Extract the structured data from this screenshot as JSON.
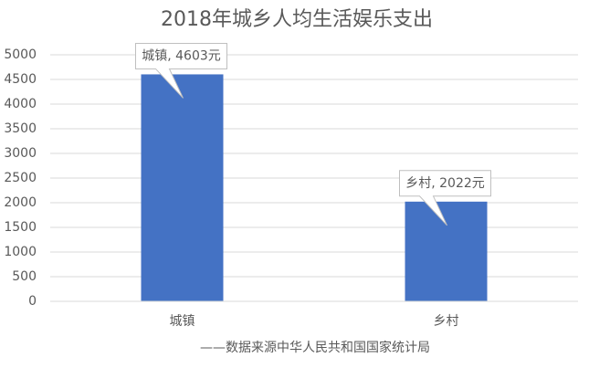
{
  "chart_data": {
    "type": "bar",
    "title": "2018年城乡人均生活娱乐支出",
    "categories": [
      "城镇",
      "乡村"
    ],
    "values": [
      4603,
      2022
    ],
    "value_labels": [
      "城镇, 4603元",
      "乡村, 2022元"
    ],
    "color": "#4472c4",
    "x_label": "——数据来源中华人民共和国国家统计局",
    "ylim": [
      0,
      5000
    ],
    "yticks": [
      0,
      500,
      1000,
      1500,
      2000,
      2500,
      3000,
      3500,
      4000,
      4500,
      5000
    ],
    "grid": true
  }
}
